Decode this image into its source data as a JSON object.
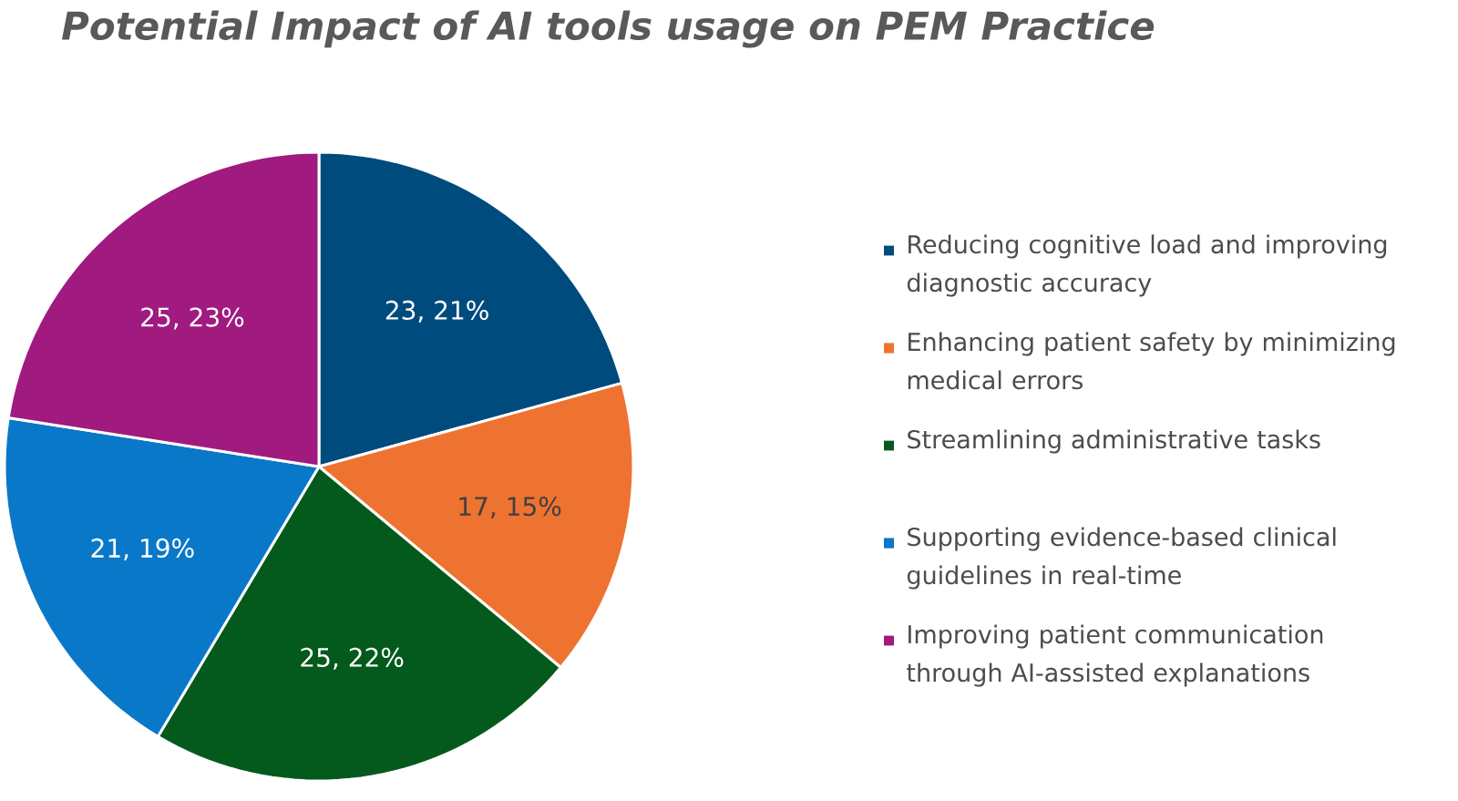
{
  "chart_data": {
    "type": "pie",
    "title": "Potential Impact of AI tools usage on PEM Practice",
    "categories": [
      "Reducing cognitive load and improving diagnostic accuracy",
      "Enhancing patient safety by minimizing medical errors",
      "Streamlining administrative tasks",
      "Supporting evidence-based clinical guidelines in real-time",
      "Improving patient communication through AI-assisted explanations"
    ],
    "values": [
      23,
      17,
      25,
      21,
      25
    ],
    "colors": [
      "#004b7d",
      "#ef7330",
      "#045a1c",
      "#0a78c8",
      "#a01a80"
    ],
    "value_labels": [
      "23, 21%",
      "17, 15%",
      "25, 22%",
      "21, 19%",
      "25, 23%"
    ],
    "legend": "right"
  }
}
